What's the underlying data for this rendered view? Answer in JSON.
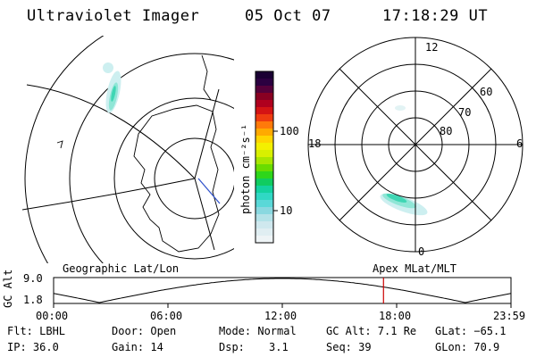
{
  "header": {
    "title": "Ultraviolet Imager",
    "date": "05 Oct 07",
    "time": "17:18:29 UT"
  },
  "colorbar": {
    "unit": "photon cm⁻²s⁻¹",
    "ticks": [
      "100",
      "10"
    ]
  },
  "polar_plot": {
    "mlt_labels": [
      "12",
      "18",
      "6",
      "0"
    ],
    "lat_labels": [
      "60",
      "70",
      "80"
    ]
  },
  "projection_labels": {
    "left": "Geographic Lat/Lon",
    "right": "Apex MLat/MLT"
  },
  "altitude_plot": {
    "axis_label": "GC Alt",
    "y_ticks": [
      "9.0",
      "1.8"
    ],
    "x_ticks": [
      "00:00",
      "06:00",
      "12:00",
      "18:00",
      "23:59"
    ],
    "current_time_marker_hours": 17.31
  },
  "info": {
    "flt": "Flt: LBHL",
    "door": "Door: Open",
    "mode": "Mode: Normal",
    "gc_alt": "GC Alt: 7.1 Re",
    "glat": "GLat: −65.1",
    "ip": "IP: 36.0",
    "gain": "Gain: 14",
    "dsp_label": "Dsp:",
    "dsp_value": "3.1",
    "seq": "Seq: 39",
    "glon": "GLon: 70.9"
  },
  "colors": {
    "aurora_strong": "#3fd6b4",
    "aurora_mid": "#8fe6d6",
    "aurora_weak": "#cdeff0",
    "marker": "#cc0000"
  }
}
